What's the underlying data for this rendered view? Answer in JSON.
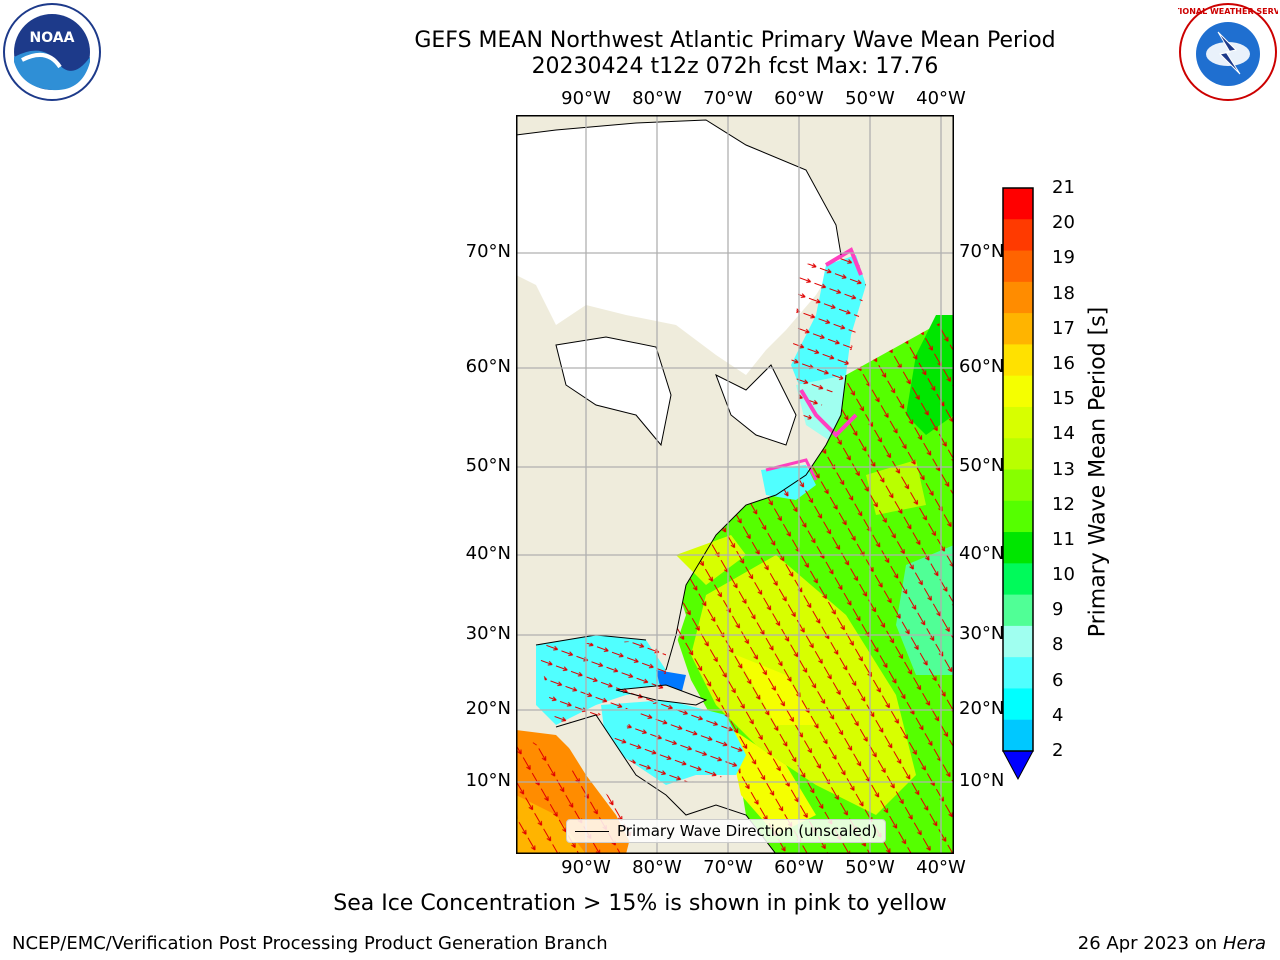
{
  "title_line1": "GEFS MEAN Northwest Atlantic Primary Wave Mean Period",
  "title_line2": "20230424 t12z 072h fcst   Max: 17.76",
  "lon_labels": [
    "90°W",
    "80°W",
    "70°W",
    "60°W",
    "50°W",
    "40°W"
  ],
  "lat_labels": [
    "70°N",
    "60°N",
    "50°N",
    "40°N",
    "30°N",
    "20°N",
    "10°N"
  ],
  "legend_text": "Primary Wave Direction (unscaled)",
  "colorbar": {
    "label": "Primary Wave Mean Period [s]",
    "ticks": [
      "21",
      "20",
      "19",
      "18",
      "17",
      "16",
      "15",
      "14",
      "13",
      "12",
      "11",
      "10",
      "9",
      "8",
      "6",
      "4",
      "2"
    ],
    "colors": [
      "#ff0000",
      "#ff3a00",
      "#ff6400",
      "#ff8c00",
      "#ffb400",
      "#ffe100",
      "#f5ff00",
      "#d7ff00",
      "#b9ff00",
      "#87ff00",
      "#55ff00",
      "#00e600",
      "#00fa5a",
      "#50ff96",
      "#a0fff0",
      "#50ffff",
      "#00ffff",
      "#00c8ff",
      "#0078ff",
      "#0000ff"
    ]
  },
  "note": "Sea Ice Concentration > 15% is shown in pink to yellow",
  "footer_left": "NCEP/EMC/Verification Post Processing Product Generation Branch",
  "footer_date": "26 Apr 2023 on ",
  "footer_host": "Hera",
  "logos": {
    "left": "noaa-logo",
    "right": "nws-logo",
    "left_text": "NOAA",
    "right_text": "NATIONAL WEATHER SERVICE"
  }
}
